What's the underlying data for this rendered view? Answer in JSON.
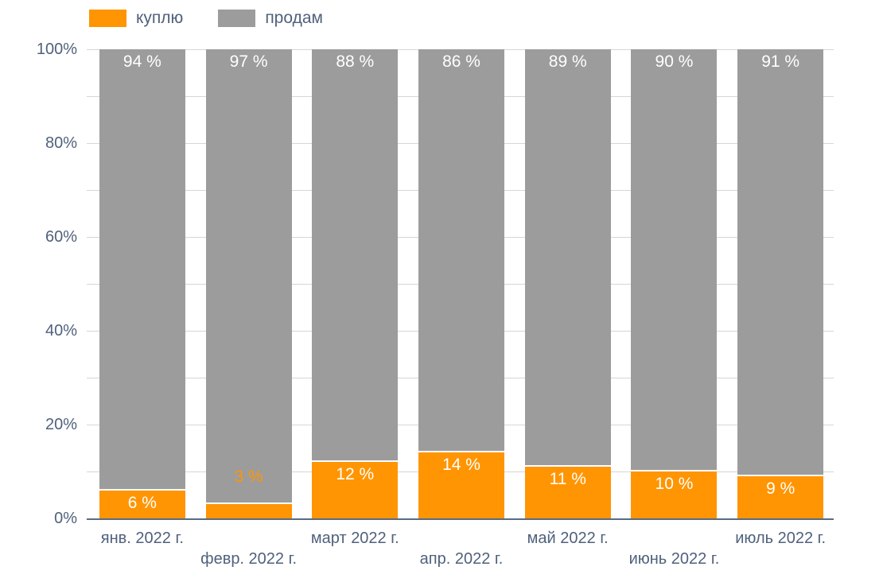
{
  "legend": {
    "items": [
      {
        "label": "куплю",
        "color": "#ff9502"
      },
      {
        "label": "продам",
        "color": "#9c9c9c"
      }
    ]
  },
  "y_axis": {
    "tick_labels": [
      "0%",
      "20%",
      "40%",
      "60%",
      "80%",
      "100%"
    ],
    "minor_tick_step": 10
  },
  "chart_data": {
    "type": "bar",
    "stacked": true,
    "title": "",
    "categories": [
      "янв. 2022 г.",
      "февр. 2022 г.",
      "март 2022 г.",
      "апр. 2022 г.",
      "май 2022 г.",
      "июнь 2022 г.",
      "июль 2022 г."
    ],
    "series": [
      {
        "name": "куплю",
        "color": "#ff9502",
        "values": [
          6,
          3,
          12,
          14,
          11,
          10,
          9
        ],
        "data_labels": [
          "6 %",
          "3 %",
          "12 %",
          "14 %",
          "11 %",
          "10 %",
          "9 %"
        ]
      },
      {
        "name": "продам",
        "color": "#9c9c9c",
        "values": [
          94,
          97,
          88,
          86,
          89,
          90,
          91
        ],
        "data_labels": [
          "94 %",
          "97 %",
          "88 %",
          "86 %",
          "89 %",
          "90 %",
          "91 %"
        ]
      }
    ],
    "ylim": [
      0,
      100
    ],
    "grid": true,
    "legend_position": "top-left"
  },
  "colors": {
    "buy": "#ff9502",
    "sell": "#9c9c9c",
    "axis_text": "#50617c",
    "gridline": "#d6d6d6",
    "axis_line": "#596b84",
    "bar_label": "#ffffff"
  }
}
